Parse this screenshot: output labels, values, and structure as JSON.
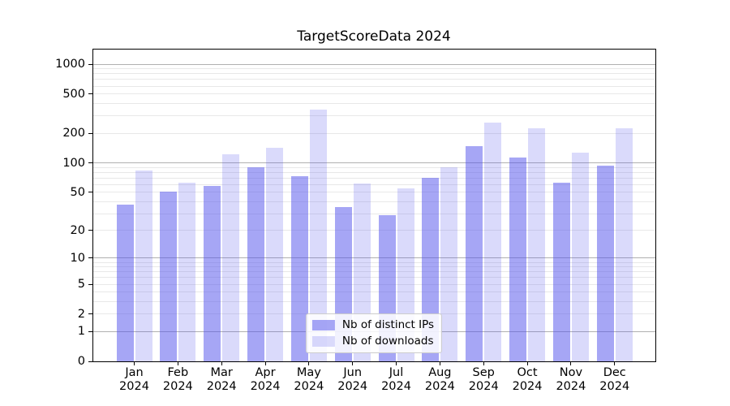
{
  "title": "TargetScoreData 2024",
  "chart_data": {
    "type": "bar",
    "title": "TargetScoreData 2024",
    "categories": [
      "Jan 2024",
      "Feb 2024",
      "Mar 2024",
      "Apr 2024",
      "May 2024",
      "Jun 2024",
      "Jul 2024",
      "Aug 2024",
      "Sep 2024",
      "Oct 2024",
      "Nov 2024",
      "Dec 2024"
    ],
    "x_tick_months": [
      "Jan",
      "Feb",
      "Mar",
      "Apr",
      "May",
      "Jun",
      "Jul",
      "Aug",
      "Sep",
      "Oct",
      "Nov",
      "Dec"
    ],
    "x_tick_year": "2024",
    "series": [
      {
        "name": "Nb of distinct IPs",
        "values": [
          37,
          51,
          58,
          90,
          73,
          35,
          29,
          70,
          148,
          113,
          63,
          93
        ],
        "fill": "rgba(85,85,235,0.52)"
      },
      {
        "name": "Nb of downloads",
        "values": [
          84,
          63,
          122,
          142,
          350,
          61,
          55,
          90,
          255,
          225,
          126,
          225
        ],
        "fill": "rgba(85,85,235,0.22)"
      }
    ],
    "xlabel": "",
    "ylabel": "",
    "y_scale": "symlog: position proportional to log10(1+value)",
    "y_ticks": [
      0,
      1,
      2,
      5,
      10,
      20,
      50,
      100,
      200,
      500,
      1000
    ],
    "y_major_gridlines": [
      1,
      10,
      100,
      1000
    ],
    "y_minor_gridlines": [
      2,
      3,
      4,
      5,
      6,
      7,
      8,
      9,
      20,
      30,
      40,
      50,
      60,
      70,
      80,
      90,
      200,
      300,
      400,
      500,
      600,
      700,
      800,
      900
    ],
    "ylim": [
      0,
      1430
    ],
    "grid": true,
    "legend": {
      "position": "lower center",
      "entries": [
        "Nb of distinct IPs",
        "Nb of downloads"
      ]
    }
  },
  "colors": {
    "bar_base": "#5555eb",
    "series1_fill": "rgba(85,85,235,0.52)",
    "series2_fill": "rgba(85,85,235,0.22)",
    "major_grid": "#b0b0b0",
    "minor_grid": "#e8e8e8",
    "axis": "#000000",
    "text": "#000000",
    "legend_border": "#cccccc",
    "legend_bg": "rgba(255,255,255,0.85)",
    "background": "#ffffff"
  }
}
